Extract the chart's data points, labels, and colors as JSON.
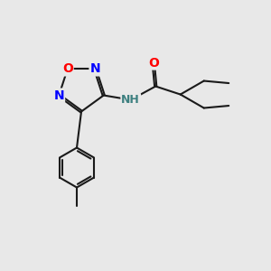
{
  "background_color": "#e8e8e8",
  "bond_color": "#1a1a1a",
  "bond_width": 1.5,
  "atom_colors": {
    "O": "#ff0000",
    "N": "#0000ff",
    "H": "#3d8080"
  },
  "font_size_large": 10,
  "font_size_small": 9
}
